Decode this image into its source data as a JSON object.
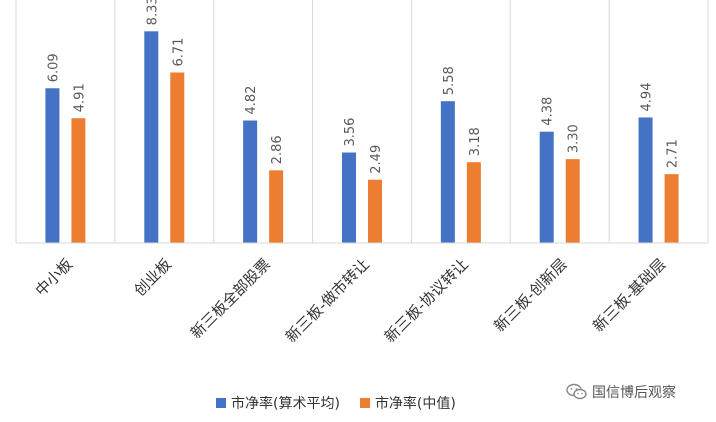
{
  "chart_data": {
    "type": "bar",
    "categories": [
      "中小板",
      "创业板",
      "新三板全部股票",
      "新三板-做市转让",
      "新三板-协议转让",
      "新三板-创新层",
      "新三板-基础层"
    ],
    "series": [
      {
        "name": "市净率(算术平均)",
        "values": [
          6.09,
          8.33,
          4.82,
          3.56,
          5.58,
          4.38,
          4.94
        ],
        "labels": [
          "6.09",
          "8.33",
          "4.82",
          "3.56",
          "5.58",
          "4.38",
          "4.94"
        ],
        "color": "#4472C4"
      },
      {
        "name": "市净率(中值)",
        "values": [
          4.91,
          6.71,
          2.86,
          2.49,
          3.18,
          3.3,
          2.71
        ],
        "labels": [
          "4.91",
          "6.71",
          "2.86",
          "2.49",
          "3.18",
          "3.30",
          "2.71"
        ],
        "color": "#ED7D31"
      }
    ],
    "ylim": [
      0,
      8.5
    ],
    "grid": false,
    "legend_position": "bottom"
  },
  "watermark": {
    "text": "国信博后观察",
    "icon": "wechat-icon"
  },
  "colors": {
    "divider": "#D9D9D9",
    "axis": "#D9D9D9",
    "label": "#595959"
  }
}
